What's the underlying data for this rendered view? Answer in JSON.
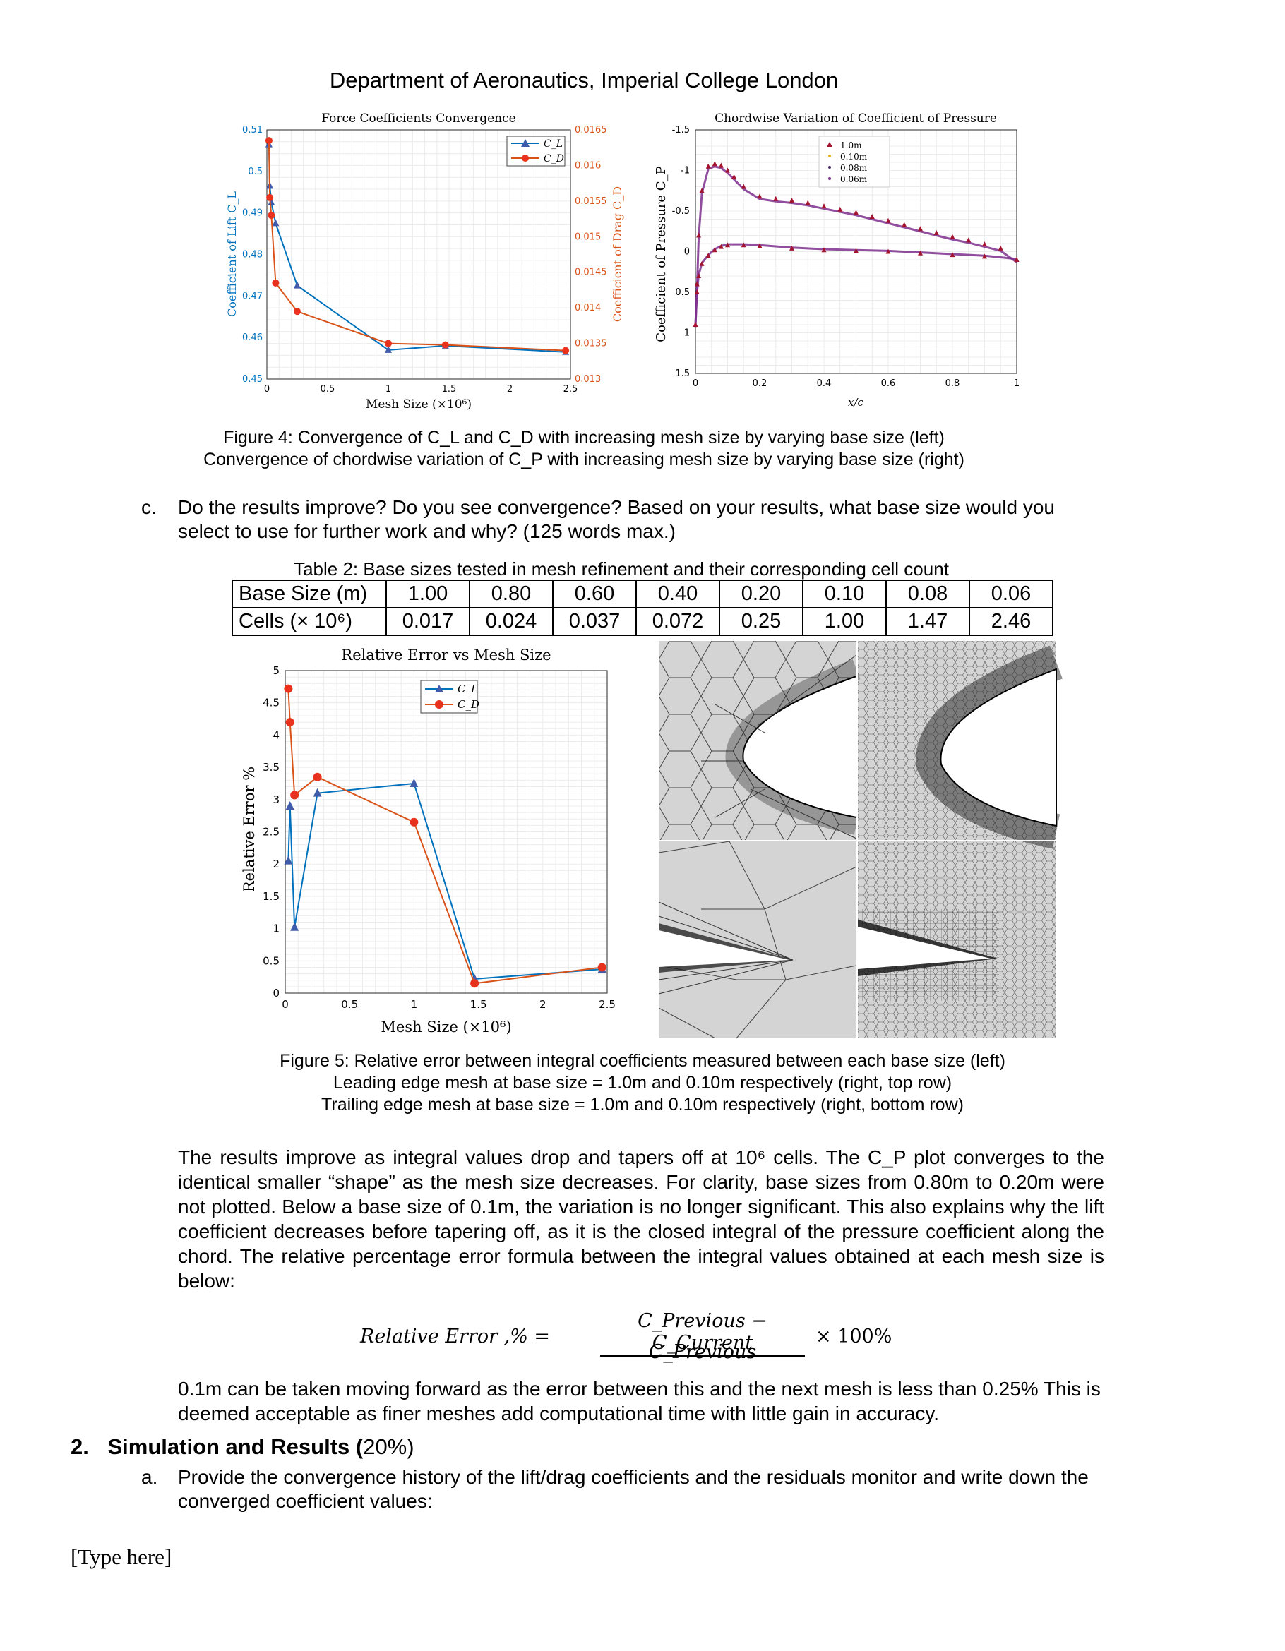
{
  "header": "Department of Aeronautics, Imperial College London",
  "figure4": {
    "caption_line1": "Figure 4: Convergence of C_L and C_D with increasing mesh size by varying base size (left)",
    "caption_line2": "Convergence of chordwise variation of C_P with increasing mesh size by varying base size (right)"
  },
  "question_c": {
    "marker": "c.",
    "text": "Do the results improve? Do you see convergence? Based on your results, what base size would you select to use for further work and why? (125 words max.)"
  },
  "table2": {
    "caption": "Table 2: Base sizes tested in mesh refinement and their corresponding cell count",
    "row1_label": "Base Size (m)",
    "row1": [
      "1.00",
      "0.80",
      "0.60",
      "0.40",
      "0.20",
      "0.10",
      "0.08",
      "0.06"
    ],
    "row2_label": "Cells (× 10⁶)",
    "row2": [
      "0.017",
      "0.024",
      "0.037",
      "0.072",
      "0.25",
      "1.00",
      "1.47",
      "2.46"
    ]
  },
  "figure5": {
    "caption_line1": "Figure 5: Relative error between integral coefficients measured between each base size (left)",
    "caption_line2": "Leading edge mesh at base size = 1.0m and 0.10m respectively (right, top row)",
    "caption_line3": "Trailing edge mesh at base size = 1.0m and 0.10m respectively (right, bottom row)"
  },
  "answer": {
    "paragraph": "The results improve as integral values drop and tapers off at 10⁶ cells. The C_P plot converges to the identical smaller “shape” as the mesh size decreases. For clarity, base sizes from 0.80m to 0.20m were not plotted. Below a base size of 0.1m, the variation is no longer significant. This also explains why the lift coefficient decreases before tapering off, as it is the closed integral of the pressure coefficient along the chord. The relative percentage error formula between the integral values obtained at each mesh size is below:",
    "formula_lhs": "Relative Error ,% =",
    "formula_num": "C_Previous − C_Current",
    "formula_den": "C_Previous",
    "formula_rhs": "× 100%",
    "paragraph2": "0.1m can be taken moving forward as the error between this and the next mesh is less than 0.25% This is deemed acceptable as finer meshes add computational time with little gain in accuracy."
  },
  "section2": {
    "number": "2.",
    "title": "Simulation and Results (",
    "weight": "20%)",
    "item_a_marker": "a.",
    "item_a": "Provide the convergence history of the lift/drag coefficients and the residuals monitor and write down the converged coefficient values:"
  },
  "footer": "[Type here]",
  "colors": {
    "cl": "#0072BD",
    "cd": "#D95319",
    "cd_marker": "#E8321E",
    "cl_marker": "#3F5BA9"
  },
  "chart_data": [
    {
      "type": "line",
      "title": "Force Coefficients Convergence",
      "xlabel": "Mesh Size (×10⁶)",
      "ylabel_left": "Coefficient of Lift C_L",
      "ylabel_right": "Coefficient of Drag C_D",
      "xlim": [
        0,
        2.5
      ],
      "ylim_left": [
        0.45,
        0.51
      ],
      "ylim_right": [
        0.013,
        0.0165
      ],
      "x_ticks": [
        "0",
        "0.5",
        "1",
        "1.5",
        "2",
        "2.5"
      ],
      "y_ticks_left": [
        "0.45",
        "0.46",
        "0.47",
        "0.48",
        "0.49",
        "0.5",
        "0.51"
      ],
      "y_ticks_right": [
        "0.013",
        "0.0135",
        "0.014",
        "0.0145",
        "0.015",
        "0.0155",
        "0.016",
        "0.0165"
      ],
      "legend": [
        "C_L",
        "C_D"
      ],
      "legend_position": "top-right",
      "grid": true,
      "series": [
        {
          "name": "C_L",
          "axis": "left",
          "x": [
            0.017,
            0.024,
            0.037,
            0.072,
            0.25,
            1.0,
            1.47,
            2.46
          ],
          "values": [
            0.5065,
            0.4965,
            0.4925,
            0.4875,
            0.4725,
            0.457,
            0.458,
            0.4565
          ]
        },
        {
          "name": "C_D",
          "axis": "right",
          "x": [
            0.017,
            0.024,
            0.037,
            0.072,
            0.25,
            1.0,
            1.47,
            2.46
          ],
          "values": [
            0.01635,
            0.01555,
            0.0153,
            0.01435,
            0.01395,
            0.0135,
            0.01348,
            0.0134
          ]
        }
      ]
    },
    {
      "type": "scatter",
      "title": "Chordwise Variation of Coefficient of Pressure",
      "xlabel": "x/c",
      "ylabel": "Coefficient of Pressure C_P",
      "xlim": [
        0,
        1
      ],
      "ylim": [
        1.5,
        -1.5
      ],
      "x_ticks": [
        "0",
        "0.2",
        "0.4",
        "0.6",
        "0.8",
        "1"
      ],
      "y_ticks": [
        "-1.5",
        "-1",
        "-0.5",
        "0",
        "0.5",
        "1",
        "1.5"
      ],
      "legend": [
        "1.0m",
        "0.10m",
        "0.08m",
        "0.06m"
      ],
      "legend_position": "top-center",
      "grid": true,
      "series": [
        {
          "name": "1.0m",
          "surface": "upper",
          "x": [
            0,
            0.005,
            0.01,
            0.02,
            0.04,
            0.06,
            0.08,
            0.1,
            0.12,
            0.15,
            0.2,
            0.25,
            0.3,
            0.35,
            0.4,
            0.45,
            0.5,
            0.55,
            0.6,
            0.65,
            0.7,
            0.75,
            0.8,
            0.85,
            0.9,
            0.95,
            1.0
          ],
          "values": [
            0.9,
            0.4,
            -0.2,
            -0.75,
            -1.05,
            -1.08,
            -1.06,
            -1.0,
            -0.92,
            -0.8,
            -0.68,
            -0.65,
            -0.63,
            -0.6,
            -0.56,
            -0.52,
            -0.48,
            -0.43,
            -0.38,
            -0.33,
            -0.28,
            -0.23,
            -0.18,
            -0.14,
            -0.09,
            -0.04,
            0.1
          ]
        },
        {
          "name": "1.0m",
          "surface": "lower",
          "x": [
            0,
            0.005,
            0.01,
            0.02,
            0.04,
            0.06,
            0.08,
            0.1,
            0.15,
            0.2,
            0.3,
            0.4,
            0.5,
            0.6,
            0.7,
            0.8,
            0.9,
            1.0
          ],
          "values": [
            0.9,
            0.5,
            0.3,
            0.15,
            0.05,
            -0.02,
            -0.06,
            -0.08,
            -0.08,
            -0.07,
            -0.04,
            -0.02,
            -0.01,
            0.0,
            0.02,
            0.04,
            0.06,
            0.1
          ]
        }
      ]
    },
    {
      "type": "line",
      "title": "Relative Error vs Mesh Size",
      "xlabel": "Mesh Size (×10⁶)",
      "ylabel": "Relative Error %",
      "xlim": [
        0,
        2.5
      ],
      "ylim": [
        0,
        5
      ],
      "x_ticks": [
        "0",
        "0.5",
        "1",
        "1.5",
        "2",
        "2.5"
      ],
      "y_ticks": [
        "0",
        "0.5",
        "1",
        "1.5",
        "2",
        "2.5",
        "3",
        "3.5",
        "4",
        "4.5",
        "5"
      ],
      "legend": [
        "C_L",
        "C_D"
      ],
      "legend_position": "top-center",
      "grid": true,
      "series": [
        {
          "name": "C_L",
          "x": [
            0.024,
            0.037,
            0.072,
            0.25,
            1.0,
            1.47,
            2.46
          ],
          "values": [
            2.05,
            2.9,
            1.02,
            3.1,
            3.25,
            0.22,
            0.37
          ]
        },
        {
          "name": "C_D",
          "x": [
            0.024,
            0.037,
            0.072,
            0.25,
            1.0,
            1.47,
            2.46
          ],
          "values": [
            4.72,
            4.2,
            3.07,
            3.35,
            2.65,
            0.15,
            0.4
          ]
        }
      ]
    }
  ]
}
